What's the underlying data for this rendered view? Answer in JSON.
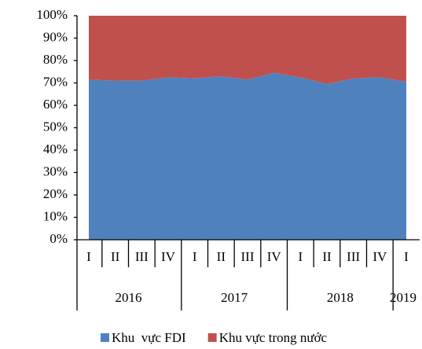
{
  "chart_data": {
    "type": "stacked_area",
    "categories": [
      {
        "year": "2016",
        "quarter": "I"
      },
      {
        "year": "2016",
        "quarter": "II"
      },
      {
        "year": "2016",
        "quarter": "III"
      },
      {
        "year": "2016",
        "quarter": "IV"
      },
      {
        "year": "2017",
        "quarter": "I"
      },
      {
        "year": "2017",
        "quarter": "II"
      },
      {
        "year": "2017",
        "quarter": "III"
      },
      {
        "year": "2017",
        "quarter": "IV"
      },
      {
        "year": "2018",
        "quarter": "I"
      },
      {
        "year": "2018",
        "quarter": "II"
      },
      {
        "year": "2018",
        "quarter": "III"
      },
      {
        "year": "2018",
        "quarter": "IV"
      },
      {
        "year": "2019",
        "quarter": "I"
      }
    ],
    "series": [
      {
        "name": "Khu  vực FDI",
        "color": "#4f81bd",
        "values": [
          71.5,
          71,
          71,
          72.5,
          72,
          73,
          71.5,
          74.5,
          72.5,
          69.5,
          72,
          72.5,
          70.5
        ]
      },
      {
        "name": "Khu vực trong nước",
        "color": "#c0504d",
        "values": [
          28.5,
          29,
          29,
          27.5,
          28,
          27,
          28.5,
          25.5,
          27.5,
          30.5,
          28,
          27.5,
          29.5
        ]
      }
    ],
    "ylim": [
      0,
      100
    ],
    "yticks": [
      {
        "value": 0,
        "label": "0%"
      },
      {
        "value": 10,
        "label": "10%"
      },
      {
        "value": 20,
        "label": "20%"
      },
      {
        "value": 30,
        "label": "30%"
      },
      {
        "value": 40,
        "label": "40%"
      },
      {
        "value": 50,
        "label": "50%"
      },
      {
        "value": 60,
        "label": "60%"
      },
      {
        "value": 70,
        "label": "70%"
      },
      {
        "value": 80,
        "label": "80%"
      },
      {
        "value": 90,
        "label": "90%"
      },
      {
        "value": 100,
        "label": "100%"
      }
    ],
    "legend": "bottom"
  }
}
